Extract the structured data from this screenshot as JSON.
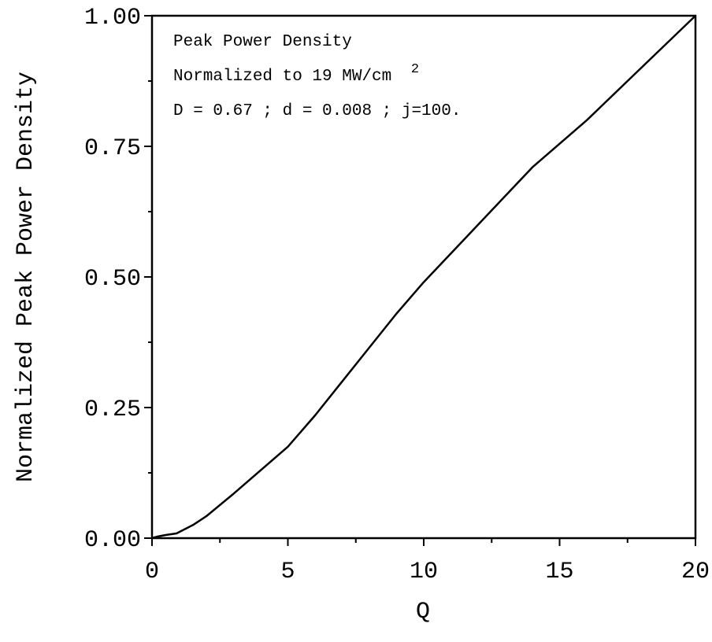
{
  "chart_data": {
    "type": "line",
    "xlabel": "Q",
    "ylabel": "Normalized Peak Power Density",
    "xlim": [
      0,
      20
    ],
    "ylim": [
      0,
      1
    ],
    "x_ticks": [
      "0",
      "5",
      "10",
      "15",
      "20"
    ],
    "y_ticks": [
      "0.00",
      "0.25",
      "0.50",
      "0.75",
      "1.00"
    ],
    "grid": false,
    "annotations": {
      "line1": "Peak Power Density",
      "line2_main": "Normalized to 19 MW/cm",
      "line2_sup": "2",
      "line3": "D = 0.67 ; d = 0.008 ; j=100."
    },
    "series": [
      {
        "points": [
          [
            0.0,
            0.0
          ],
          [
            0.2,
            0.003
          ],
          [
            0.5,
            0.006
          ],
          [
            0.9,
            0.009
          ],
          [
            1.5,
            0.025
          ],
          [
            2.0,
            0.042
          ],
          [
            3.0,
            0.085
          ],
          [
            4.0,
            0.13
          ],
          [
            5.0,
            0.175
          ],
          [
            6.0,
            0.235
          ],
          [
            7.0,
            0.3
          ],
          [
            8.0,
            0.365
          ],
          [
            9.0,
            0.43
          ],
          [
            10.0,
            0.49
          ],
          [
            12.0,
            0.6
          ],
          [
            14.0,
            0.71
          ],
          [
            16.0,
            0.8
          ],
          [
            18.0,
            0.9
          ],
          [
            20.0,
            1.0
          ]
        ]
      }
    ]
  }
}
